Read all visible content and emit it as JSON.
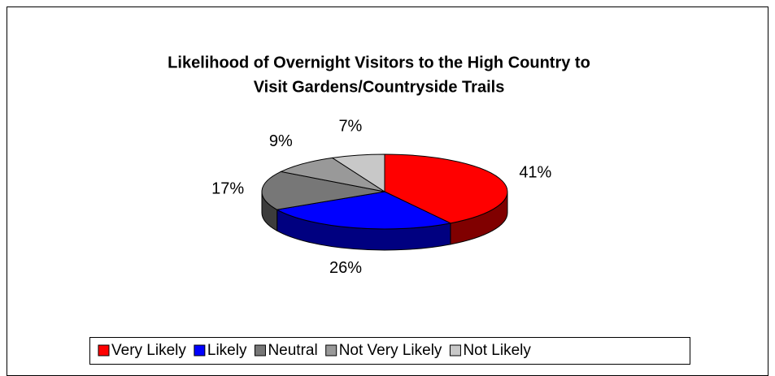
{
  "chart_data": {
    "type": "pie3d",
    "title": [
      "Likelihood of Overnight Visitors to the High Country to",
      "Visit Gardens/Countryside Trails"
    ],
    "categories": [
      "Very Likely",
      "Likely",
      "Neutral",
      "Not Very Likely",
      "Not Likely"
    ],
    "values": [
      41,
      26,
      17,
      9,
      7
    ],
    "value_labels": [
      "41%",
      "26%",
      "17%",
      "9%",
      "7%"
    ],
    "colors": [
      "#ff0000",
      "#0000ff",
      "#777777",
      "#999999",
      "#c8c8c8"
    ],
    "legend": "bottom"
  }
}
